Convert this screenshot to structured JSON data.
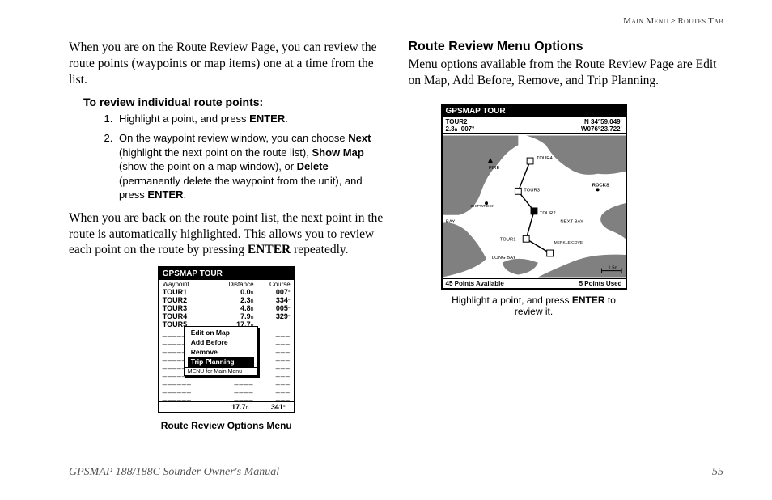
{
  "header": {
    "left": "Main Menu",
    "sep": ">",
    "right": "Routes Tab"
  },
  "left_col": {
    "p1": "When you are on the Route Review Page, you can review the route points (waypoints or map items) one at a time from the list.",
    "steps_head": "To review individual route points:",
    "step1_a": "Highlight a point, and press ",
    "step1_b": "ENTER",
    "step1_c": ".",
    "step2_a": "On the waypoint review window, you can choose ",
    "step2_b": "Next",
    "step2_c": " (highlight the next point on the route list), ",
    "step2_d": "Show Map",
    "step2_e": " (show the point on a map window), or ",
    "step2_f": "Delete",
    "step2_g": " (permanently delete the waypoint from the unit), and press ",
    "step2_h": "ENTER",
    "step2_i": ".",
    "p2_a": "When you are back on the route point list, the next point in the route is automatically highlighted. This allows you to review each point on the route by pressing ",
    "p2_b": "ENTER",
    "p2_c": " repeatedly.",
    "caption1": "Route Review Options Menu"
  },
  "right_col": {
    "title": "Route Review Menu Options",
    "p1": "Menu options available from the Route Review Page are Edit on Map, Add Before, Remove, and Trip Planning.",
    "caption2_a": "Highlight a point, and press ",
    "caption2_b": "ENTER",
    "caption2_c": " to review it."
  },
  "figure1": {
    "title": "GPSMAP TOUR",
    "head_c1": "Waypoint",
    "head_c2": "Distance",
    "head_c3": "Course",
    "rows": [
      {
        "wp": "TOUR1",
        "dist": "0.0",
        "course": "007"
      },
      {
        "wp": "TOUR2",
        "dist": "2.3",
        "course": "334"
      },
      {
        "wp": "TOUR3",
        "dist": "4.8",
        "course": "005"
      },
      {
        "wp": "TOUR4",
        "dist": "7.9",
        "course": "329"
      },
      {
        "wp": "TOUR5",
        "dist": "17.7",
        "course": ""
      }
    ],
    "dist_unit": "n",
    "course_unit": "°",
    "popup": {
      "items": [
        "Edit on Map",
        "Add Before",
        "Remove",
        "Trip Planning"
      ],
      "hint": "MENU for Main Menu",
      "highlighted": 3
    },
    "footer": {
      "dist": "17.7",
      "course": "341"
    },
    "dash_rows": 9
  },
  "figure2": {
    "title": "GPSMAP TOUR",
    "info_l1": "TOUR2",
    "info_l2a": "2.3",
    "info_l2b": "007°",
    "coord1": "N  34°59.049'",
    "coord2": "W076°23.722'",
    "labels": {
      "tour4": "TOUR4",
      "tour3": "TOUR3",
      "tour2": "TOUR2",
      "tour1": "TOUR1",
      "rocks": "ROCKS",
      "nextbay": "NEXT BAY",
      "merklecove": "MERKLE COVE",
      "longbay": "LONG BAY",
      "shipwreck": "SHIPWRECK",
      "fire": "FIRE",
      "bay": "BAY"
    },
    "scale": "1.5n",
    "foot_l": "45 Points Available",
    "foot_r": "5  Points Used"
  },
  "footer": {
    "manual": "GPSMAP 188/188C Sounder Owner's Manual",
    "page": "55"
  },
  "colors": {
    "text": "#000000",
    "bg": "#ffffff",
    "muted": "#555555",
    "land": "#808080",
    "water": "#ffffff",
    "line": "#000000"
  }
}
